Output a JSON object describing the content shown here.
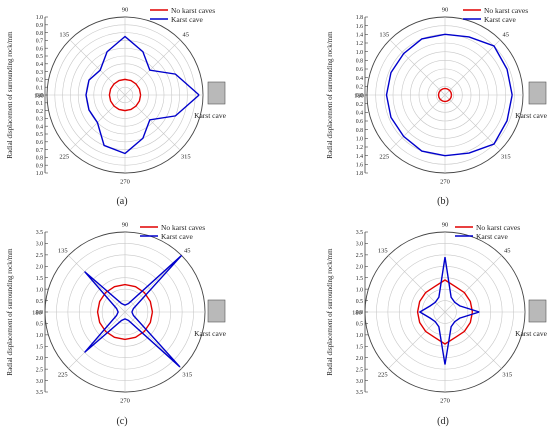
{
  "page": {
    "background": "#ffffff"
  },
  "colors": {
    "no_karst": "#e00000",
    "karst": "#0000cc",
    "grid": "#c8c8c8",
    "axis": "#444444",
    "box_fill": "#b9b9b9"
  },
  "chart_data": [
    {
      "panel_label": "(a)",
      "type": "line",
      "polar": true,
      "ylabel": "Radial displacement of surrounding rock/mm",
      "ylim": [
        0,
        1.0
      ],
      "ticks": [
        "0.0",
        "0.1",
        "0.2",
        "0.3",
        "0.4",
        "0.5",
        "0.6",
        "0.7",
        "0.8",
        "0.9",
        "1.0"
      ],
      "angle_labels": [
        "0",
        "45",
        "90",
        "135",
        "180",
        "225",
        "270",
        "315"
      ],
      "grid": true,
      "legend": "top-right",
      "inset_label": "Karst cave",
      "angles": [
        0,
        22.5,
        45,
        67.5,
        90,
        112.5,
        135,
        157.5,
        180,
        202.5,
        225,
        247.5,
        270,
        292.5,
        315,
        337.5
      ],
      "series": [
        {
          "name": "No karst caves",
          "values": [
            0.2,
            0.2,
            0.2,
            0.2,
            0.2,
            0.2,
            0.2,
            0.2,
            0.2,
            0.2,
            0.2,
            0.2,
            0.2,
            0.2,
            0.2,
            0.2
          ]
        },
        {
          "name": "Karst cave",
          "values": [
            0.95,
            0.7,
            0.45,
            0.6,
            0.75,
            0.6,
            0.45,
            0.5,
            0.5,
            0.5,
            0.5,
            0.7,
            0.75,
            0.6,
            0.45,
            0.7
          ]
        }
      ]
    },
    {
      "panel_label": "(b)",
      "type": "line",
      "polar": true,
      "ylabel": "Radial displacement of surrounding rock/mm",
      "ylim": [
        0,
        1.8
      ],
      "ticks": [
        "0.0",
        "0.2",
        "0.4",
        "0.6",
        "0.8",
        "1.0",
        "1.2",
        "1.4",
        "1.6",
        "1.8"
      ],
      "angle_labels": [
        "0",
        "45",
        "90",
        "135",
        "180",
        "225",
        "270",
        "315"
      ],
      "grid": true,
      "legend": "top-right",
      "inset_label": "Karst cave",
      "angles": [
        0,
        22.5,
        45,
        67.5,
        90,
        112.5,
        135,
        157.5,
        180,
        202.5,
        225,
        247.5,
        270,
        292.5,
        315,
        337.5
      ],
      "series": [
        {
          "name": "No karst caves",
          "values": [
            0.15,
            0.15,
            0.15,
            0.15,
            0.15,
            0.15,
            0.15,
            0.15,
            0.15,
            0.15,
            0.15,
            0.15,
            0.15,
            0.15,
            0.15,
            0.15
          ]
        },
        {
          "name": "Karst cave",
          "values": [
            1.55,
            1.55,
            1.6,
            1.45,
            1.4,
            1.4,
            1.35,
            1.35,
            1.35,
            1.35,
            1.35,
            1.4,
            1.4,
            1.45,
            1.6,
            1.55
          ]
        }
      ]
    },
    {
      "panel_label": "(c)",
      "type": "line",
      "polar": true,
      "ylabel": "Radial displacement of surrounding rock/mm",
      "ylim": [
        0,
        3.5
      ],
      "ticks": [
        "0.0",
        "0.5",
        "1.0",
        "1.5",
        "2.0",
        "2.5",
        "3.0",
        "3.5"
      ],
      "angle_labels": [
        "0",
        "45",
        "90",
        "135",
        "180",
        "225",
        "270",
        "315"
      ],
      "grid": true,
      "legend": "top-right",
      "inset_label": "Karst cave",
      "angles": [
        0,
        22.5,
        45,
        67.5,
        90,
        112.5,
        135,
        157.5,
        180,
        202.5,
        225,
        247.5,
        270,
        292.5,
        315,
        337.5
      ],
      "series": [
        {
          "name": "No karst caves",
          "values": [
            1.2,
            1.2,
            1.2,
            1.2,
            1.2,
            1.2,
            1.2,
            1.2,
            1.2,
            1.2,
            1.2,
            1.2,
            1.2,
            1.2,
            1.2,
            1.2
          ]
        },
        {
          "name": "Karst cave",
          "values": [
            0.3,
            0.4,
            3.5,
            0.4,
            0.3,
            0.4,
            2.5,
            0.4,
            0.3,
            0.4,
            2.5,
            0.4,
            0.3,
            0.4,
            3.4,
            0.4
          ]
        }
      ]
    },
    {
      "panel_label": "(d)",
      "type": "line",
      "polar": true,
      "ylabel": "Radial displacement of surrounding rock/mm",
      "ylim": [
        0,
        3.5
      ],
      "ticks": [
        "0.0",
        "0.5",
        "1.0",
        "1.5",
        "2.0",
        "2.5",
        "3.0",
        "3.5"
      ],
      "angle_labels": [
        "0",
        "45",
        "90",
        "135",
        "180",
        "225",
        "270",
        "315"
      ],
      "grid": true,
      "legend": "top-right",
      "inset_label": "Karst cave",
      "angles": [
        0,
        22.5,
        45,
        67.5,
        90,
        112.5,
        135,
        157.5,
        180,
        202.5,
        225,
        247.5,
        270,
        292.5,
        315,
        337.5
      ],
      "series": [
        {
          "name": "No karst caves",
          "values": [
            1.2,
            1.2,
            1.2,
            1.2,
            1.4,
            1.2,
            1.2,
            1.2,
            1.2,
            1.2,
            1.2,
            1.2,
            1.4,
            1.2,
            1.2,
            1.2
          ]
        },
        {
          "name": "Karst cave",
          "values": [
            1.5,
            0.7,
            0.6,
            0.7,
            2.4,
            0.7,
            0.6,
            0.7,
            1.1,
            0.7,
            0.6,
            0.7,
            2.3,
            0.7,
            0.6,
            0.7
          ]
        }
      ]
    }
  ]
}
